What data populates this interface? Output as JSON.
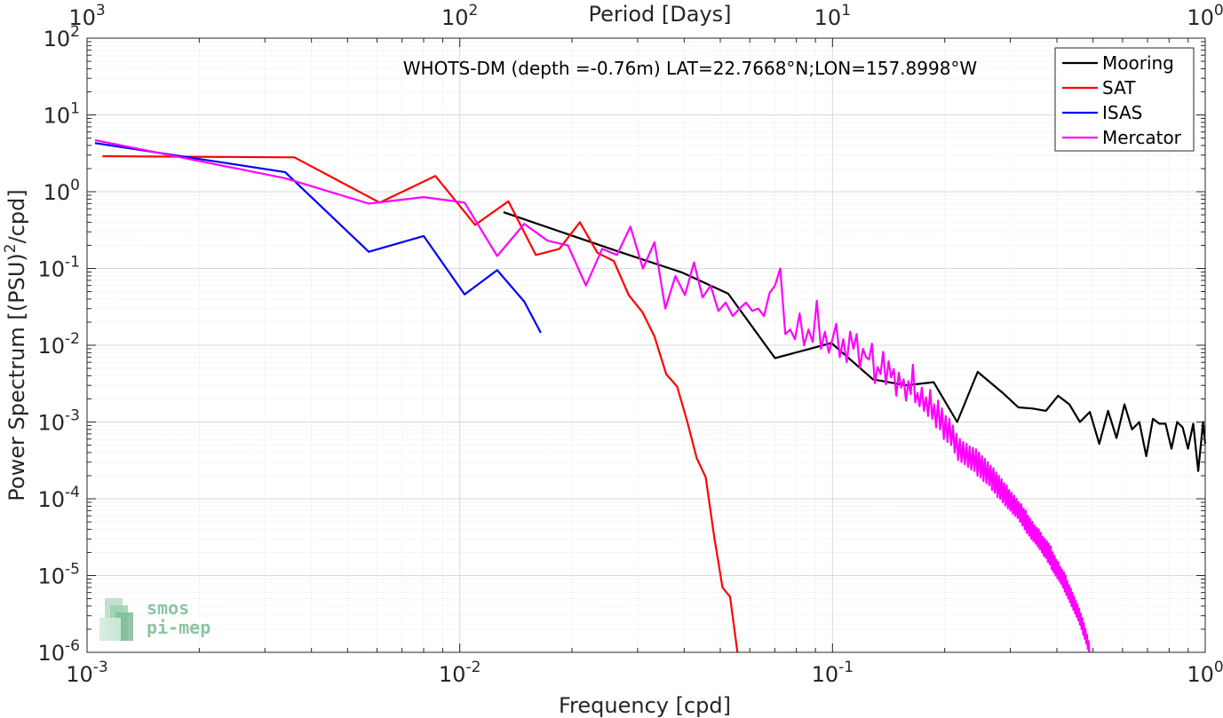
{
  "chart_data": {
    "type": "line",
    "title": "WHOTS-DM (depth =-0.76m) LAT=22.7668°N;LON=157.8998°W",
    "xlabel": "Frequency [cpd]",
    "xlabel_top": "Period [Days]",
    "ylabel": "Power Spectrum [(PSU)²/cpd]",
    "x_scale": "log",
    "y_scale": "log",
    "xlim": [
      0.001,
      1
    ],
    "ylim": [
      1e-06,
      100
    ],
    "grid": true,
    "legend_position": "top-right",
    "x_ticks": [
      {
        "value": 0.001,
        "base": "10",
        "exp": "-3"
      },
      {
        "value": 0.01,
        "base": "10",
        "exp": "-2"
      },
      {
        "value": 0.1,
        "base": "10",
        "exp": "-1"
      },
      {
        "value": 1,
        "base": "10",
        "exp": "0"
      }
    ],
    "x_ticks_top": [
      {
        "value": 0.001,
        "base": "10",
        "exp": "3"
      },
      {
        "value": 0.01,
        "base": "10",
        "exp": "2"
      },
      {
        "value": 0.1,
        "base": "10",
        "exp": "1"
      },
      {
        "value": 1,
        "base": "10",
        "exp": "0"
      }
    ],
    "y_ticks": [
      {
        "value": 1e-06,
        "base": "10",
        "exp": "-6"
      },
      {
        "value": 1e-05,
        "base": "10",
        "exp": "-5"
      },
      {
        "value": 0.0001,
        "base": "10",
        "exp": "-4"
      },
      {
        "value": 0.001,
        "base": "10",
        "exp": "-3"
      },
      {
        "value": 0.01,
        "base": "10",
        "exp": "-2"
      },
      {
        "value": 0.1,
        "base": "10",
        "exp": "-1"
      },
      {
        "value": 1,
        "base": "10",
        "exp": "0"
      },
      {
        "value": 10,
        "base": "10",
        "exp": "1"
      },
      {
        "value": 100,
        "base": "10",
        "exp": "2"
      }
    ],
    "series": [
      {
        "name": "Mooring",
        "color": "#000000",
        "x": [
          0.0131,
          0.0263,
          0.0394,
          0.0525,
          0.0701,
          0.0993,
          0.1284,
          0.1576,
          0.1868,
          0.216,
          0.2452,
          0.286,
          0.3152,
          0.3444,
          0.3736,
          0.4028,
          0.432,
          0.4612,
          0.4904,
          0.5196,
          0.5488,
          0.578,
          0.6072,
          0.6364,
          0.6656,
          0.6948,
          0.724,
          0.7532,
          0.7824,
          0.8116,
          0.8408,
          0.87,
          0.8992,
          0.9284,
          0.9576,
          0.9868,
          1.0
        ],
        "y": [
          0.54,
          0.17,
          0.089,
          0.047,
          0.0068,
          0.0107,
          0.0036,
          0.003,
          0.0033,
          0.001,
          0.0045,
          0.0024,
          0.00155,
          0.0015,
          0.0014,
          0.0022,
          0.0017,
          0.001,
          0.00135,
          0.00052,
          0.0014,
          0.00062,
          0.0017,
          0.0008,
          0.001,
          0.00036,
          0.0011,
          0.00095,
          0.00095,
          0.00045,
          0.001,
          0.00085,
          0.00045,
          0.00095,
          0.00023,
          0.001,
          0.00052
        ]
      },
      {
        "name": "SAT",
        "color": "#ff0000",
        "x": [
          0.0011,
          0.0036,
          0.0061,
          0.0086,
          0.011,
          0.0135,
          0.016,
          0.0185,
          0.021,
          0.0234,
          0.0259,
          0.0284,
          0.0309,
          0.0333,
          0.0358,
          0.0383,
          0.0408,
          0.0432,
          0.0457,
          0.0482,
          0.0507,
          0.0531,
          0.0556
        ],
        "y": [
          2.9,
          2.8,
          0.72,
          1.6,
          0.37,
          0.75,
          0.15,
          0.18,
          0.4,
          0.16,
          0.125,
          0.045,
          0.027,
          0.013,
          0.0042,
          0.0029,
          0.001,
          0.00034,
          0.00019,
          3.1e-05,
          7e-06,
          5.3e-06,
          1e-06
        ]
      },
      {
        "name": "ISAS",
        "color": "#0000ff",
        "x": [
          0.00105,
          0.0034,
          0.0057,
          0.008,
          0.0103,
          0.0126,
          0.0149,
          0.0165
        ],
        "y": [
          4.3,
          1.8,
          0.165,
          0.265,
          0.046,
          0.095,
          0.037,
          0.0145
        ]
      },
      {
        "name": "Mercator",
        "color": "#ff00ff",
        "x": [
          0.00105,
          0.0034,
          0.0057,
          0.008,
          0.0103,
          0.0126,
          0.0149,
          0.0172,
          0.0195,
          0.0218,
          0.0241,
          0.0264,
          0.0287,
          0.031,
          0.0333,
          0.0356,
          0.0379,
          0.0402,
          0.0425,
          0.0448,
          0.0471,
          0.0494,
          0.0517,
          0.054,
          0.0563,
          0.0586,
          0.0609,
          0.0632,
          0.0655,
          0.0678,
          0.0701,
          0.0724,
          0.0747,
          0.077,
          0.0793,
          0.0816,
          0.0839,
          0.0862,
          0.0885,
          0.0908,
          0.0931,
          0.0954,
          0.0977,
          0.1,
          0.1023,
          0.1046,
          0.1069,
          0.1092,
          0.1115,
          0.1138,
          0.1161,
          0.1184,
          0.1207,
          0.123,
          0.1253,
          0.1276,
          0.1299,
          0.1322,
          0.1345,
          0.1368,
          0.1391,
          0.1414,
          0.1437,
          0.146,
          0.1483,
          0.1506,
          0.1529,
          0.1552,
          0.1575,
          0.1598,
          0.1621,
          0.1644,
          0.1667,
          0.169,
          0.1713,
          0.1736,
          0.1759,
          0.1782,
          0.1805,
          0.1828,
          0.1851,
          0.1874,
          0.1897,
          0.192,
          0.1943,
          0.1966,
          0.1989,
          0.2012,
          0.2035,
          0.2058,
          0.2081,
          0.2104,
          0.2127,
          0.215,
          0.2173,
          0.2196,
          0.2219,
          0.2242,
          0.2265,
          0.2288,
          0.2311,
          0.2334,
          0.2357,
          0.238,
          0.2403,
          0.2426,
          0.2449,
          0.2472,
          0.2495,
          0.2518,
          0.2541,
          0.2564,
          0.2587,
          0.261,
          0.2633,
          0.2656,
          0.2679,
          0.2702,
          0.2725,
          0.2748,
          0.2771,
          0.2794,
          0.2817,
          0.284,
          0.2863,
          0.2886,
          0.2909,
          0.2932,
          0.2955,
          0.2978,
          0.3001,
          0.3024,
          0.3047,
          0.307,
          0.3093,
          0.3116,
          0.3139,
          0.3162,
          0.3185,
          0.3208,
          0.3231,
          0.3254,
          0.3277,
          0.33,
          0.3323,
          0.3346,
          0.3369,
          0.3392,
          0.3415,
          0.3438,
          0.3461,
          0.3484,
          0.3507,
          0.353,
          0.3553,
          0.3576,
          0.3599,
          0.3622,
          0.3645,
          0.3668,
          0.3691,
          0.3714,
          0.3737,
          0.376,
          0.3783,
          0.3806,
          0.3829,
          0.3852,
          0.3875,
          0.3898,
          0.3921,
          0.3944,
          0.3967,
          0.399,
          0.4013,
          0.4036,
          0.4059,
          0.4082,
          0.4105,
          0.4128,
          0.4151,
          0.4174,
          0.4197,
          0.422,
          0.4243,
          0.4266,
          0.4289,
          0.4312,
          0.4335,
          0.4358,
          0.4381,
          0.4404,
          0.4427,
          0.445,
          0.4473,
          0.4496,
          0.4519,
          0.4542,
          0.4565,
          0.4588,
          0.4611,
          0.4634,
          0.4657,
          0.468,
          0.4703,
          0.4726,
          0.4749,
          0.4772,
          0.4795,
          0.4818,
          0.4841,
          0.4864,
          0.4887
        ],
        "y": [
          4.7,
          1.5,
          0.7,
          0.85,
          0.72,
          0.145,
          0.38,
          0.23,
          0.2,
          0.06,
          0.18,
          0.15,
          0.35,
          0.1,
          0.22,
          0.03,
          0.08,
          0.045,
          0.12,
          0.042,
          0.06,
          0.028,
          0.036,
          0.024,
          0.03,
          0.036,
          0.028,
          0.03,
          0.024,
          0.048,
          0.06,
          0.1,
          0.014,
          0.016,
          0.012,
          0.026,
          0.01,
          0.016,
          0.011,
          0.038,
          0.009,
          0.015,
          0.008,
          0.012,
          0.019,
          0.007,
          0.012,
          0.006,
          0.015,
          0.009,
          0.014,
          0.005,
          0.009,
          0.007,
          0.0065,
          0.0105,
          0.0032,
          0.0052,
          0.0042,
          0.0082,
          0.0031,
          0.0062,
          0.0038,
          0.0049,
          0.0022,
          0.0044,
          0.0028,
          0.0036,
          0.0019,
          0.0034,
          0.0023,
          0.0056,
          0.0018,
          0.0024,
          0.0016,
          0.0028,
          0.0014,
          0.0021,
          0.0012,
          0.0026,
          0.0011,
          0.0017,
          0.00085,
          0.0019,
          0.0008,
          0.0015,
          0.0006,
          0.0012,
          0.00055,
          0.0011,
          0.0005,
          0.0009,
          0.0004,
          0.0007,
          0.00032,
          0.0006,
          0.0003,
          0.00055,
          0.00028,
          0.00052,
          0.00026,
          0.00048,
          0.00024,
          0.00046,
          0.00023,
          0.00044,
          0.0002,
          0.0004,
          0.00019,
          0.00036,
          0.00017,
          0.00033,
          0.00016,
          0.0003,
          0.00015,
          0.00027,
          0.00013,
          0.00025,
          0.00012,
          0.00022,
          0.000105,
          0.0002,
          0.0001,
          0.00018,
          9e-05,
          0.00016,
          8.2e-05,
          0.00015,
          7.5e-05,
          0.00013,
          7e-05,
          0.00012,
          6.4e-05,
          0.00011,
          6e-05,
          0.0001,
          5.6e-05,
          9e-05,
          5e-05,
          8.5e-05,
          4.5e-05,
          7.5e-05,
          4e-05,
          7e-05,
          3.6e-05,
          6e-05,
          3.3e-05,
          5.5e-05,
          3e-05,
          5e-05,
          2.8e-05,
          4.5e-05,
          2.6e-05,
          4.2e-05,
          2.4e-05,
          4e-05,
          2.2e-05,
          3.6e-05,
          2e-05,
          3.2e-05,
          1.8e-05,
          3e-05,
          1.7e-05,
          2.8e-05,
          1.5e-05,
          2.6e-05,
          1.4e-05,
          2.4e-05,
          1.2e-05,
          2e-05,
          1.1e-05,
          1.8e-05,
          1e-05,
          1.6e-05,
          9.2e-06,
          1.5e-05,
          8.5e-06,
          1.3e-05,
          7.8e-06,
          1.2e-05,
          7e-06,
          1.1e-05,
          6.2e-06,
          1e-05,
          5.6e-06,
          8.5e-06,
          5e-06,
          7.5e-06,
          4.5e-06,
          6.8e-06,
          4e-06,
          6e-06,
          3.6e-06,
          5.3e-06,
          3.2e-06,
          4.7e-06,
          2.9e-06,
          4.2e-06,
          2.6e-06,
          3.7e-06,
          2.3e-06,
          3.2e-06,
          2e-06,
          2.8e-06,
          1.7e-06,
          2.4e-06,
          1.5e-06,
          2e-06,
          1.3e-06,
          1.7e-06,
          1.1e-06,
          1.4e-06,
          1e-06
        ]
      }
    ],
    "watermark": "smos pi-mep"
  }
}
